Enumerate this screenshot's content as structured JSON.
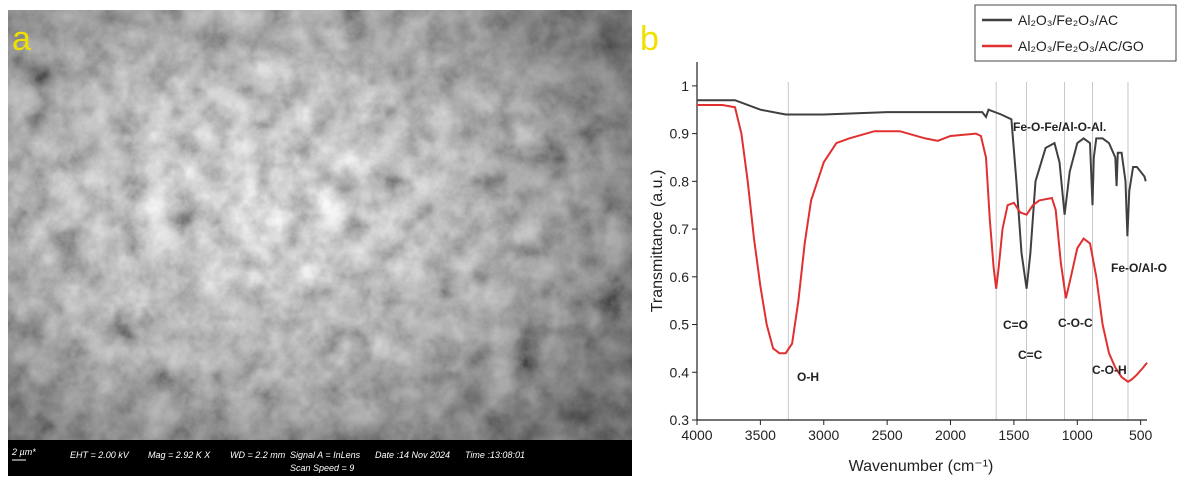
{
  "sem": {
    "label": "a",
    "info": [
      "2 µm*",
      "EHT = 2.00 kV",
      "Mag = 2.92 K X",
      "WD = 2.2 mm",
      "Signal A = InLens",
      "Date :14 Nov 2024",
      "Time :13:08:01",
      "Scan Speed = 9"
    ]
  },
  "chart_data": {
    "type": "line",
    "panel_label": "b",
    "xlabel": "Wavenumber (cm⁻¹)",
    "ylabel": "Transmittance (a.u.)",
    "xlim": [
      4000,
      450
    ],
    "ylim": [
      0.3,
      1.05
    ],
    "xticks": [
      4000,
      3500,
      3000,
      2500,
      2000,
      1500,
      1000,
      500
    ],
    "yticks": [
      0.3,
      0.4,
      0.5,
      0.6,
      0.7,
      0.8,
      0.9,
      1
    ],
    "reference_lines": [
      3280,
      1640,
      1400,
      1100,
      880,
      600
    ],
    "annotations": [
      "O-H",
      "C=O",
      "C=C",
      "C-O-C",
      "C-O-H",
      "Fe-O-Fe/Al-O-Al.",
      "Fe-O/Al-O"
    ],
    "legend": "upper right",
    "series": [
      {
        "name": "Al₂O₃/Fe₂O₃/AC",
        "color": "#404040",
        "x": [
          4000,
          3700,
          3500,
          3300,
          3000,
          2500,
          2000,
          1750,
          1720,
          1700,
          1600,
          1520,
          1480,
          1440,
          1400,
          1370,
          1330,
          1250,
          1180,
          1140,
          1100,
          1060,
          1000,
          950,
          900,
          880,
          870,
          850,
          800,
          750,
          700,
          690,
          680,
          650,
          620,
          605,
          590,
          560,
          530,
          500,
          470,
          460
        ],
        "values": [
          0.97,
          0.97,
          0.95,
          0.94,
          0.94,
          0.945,
          0.945,
          0.945,
          0.935,
          0.95,
          0.94,
          0.93,
          0.8,
          0.65,
          0.575,
          0.65,
          0.8,
          0.87,
          0.88,
          0.84,
          0.73,
          0.82,
          0.88,
          0.89,
          0.88,
          0.75,
          0.85,
          0.89,
          0.89,
          0.88,
          0.85,
          0.79,
          0.86,
          0.86,
          0.8,
          0.685,
          0.78,
          0.83,
          0.83,
          0.82,
          0.81,
          0.8
        ]
      },
      {
        "name": "Al₂O₃/Fe₂O₃/AC/GO",
        "color": "#e03030",
        "x": [
          4000,
          3800,
          3700,
          3650,
          3600,
          3550,
          3500,
          3450,
          3400,
          3350,
          3300,
          3250,
          3200,
          3150,
          3100,
          3000,
          2900,
          2800,
          2600,
          2400,
          2200,
          2100,
          2000,
          1800,
          1760,
          1720,
          1690,
          1660,
          1640,
          1620,
          1590,
          1550,
          1500,
          1450,
          1400,
          1350,
          1300,
          1200,
          1170,
          1130,
          1090,
          1050,
          1000,
          950,
          900,
          850,
          800,
          750,
          700,
          650,
          600,
          570,
          530,
          480,
          450
        ],
        "values": [
          0.96,
          0.96,
          0.955,
          0.9,
          0.8,
          0.68,
          0.58,
          0.5,
          0.45,
          0.44,
          0.44,
          0.46,
          0.55,
          0.67,
          0.76,
          0.84,
          0.88,
          0.89,
          0.905,
          0.905,
          0.89,
          0.885,
          0.895,
          0.9,
          0.895,
          0.85,
          0.72,
          0.62,
          0.575,
          0.62,
          0.7,
          0.75,
          0.755,
          0.735,
          0.73,
          0.75,
          0.76,
          0.765,
          0.74,
          0.63,
          0.555,
          0.6,
          0.66,
          0.68,
          0.67,
          0.6,
          0.5,
          0.44,
          0.41,
          0.39,
          0.38,
          0.385,
          0.395,
          0.41,
          0.42
        ]
      }
    ]
  }
}
